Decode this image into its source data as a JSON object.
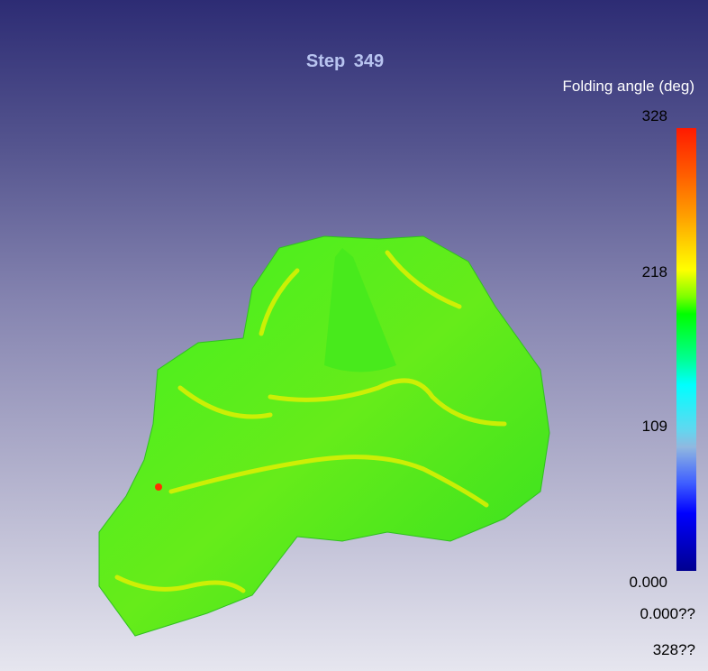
{
  "title": "Step  349",
  "colorbar": {
    "label": "Folding angle (deg)",
    "ticks": [
      "328",
      "218",
      "109",
      "0.000"
    ],
    "range_min": "0.000??",
    "range_max": "328??",
    "colormap": [
      "#000090",
      "#0000ff",
      "#90b8e0",
      "#00ffff",
      "#00ff00",
      "#ffff00",
      "#ffa000",
      "#ff1a00"
    ]
  },
  "colors": {
    "surface": "#3ef01c",
    "highlight": "#e8f000",
    "background_top": "#2d2c74",
    "background_bottom": "#e6e6ef"
  }
}
